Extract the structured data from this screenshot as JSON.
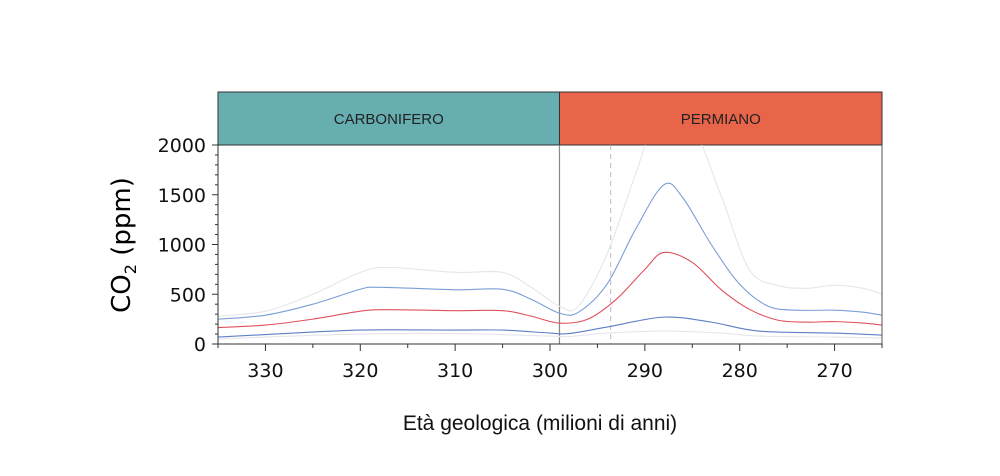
{
  "chart_data": {
    "type": "line",
    "xlabel": "Età geologica (milioni di anni)",
    "ylabel_main": "CO",
    "ylabel_sub": "2",
    "ylabel_unit": " (ppm)",
    "xlim": [
      335,
      265
    ],
    "ylim": [
      0,
      2000
    ],
    "xticks": [
      330,
      320,
      310,
      300,
      290,
      280,
      270
    ],
    "yticks": [
      0,
      500,
      1000,
      1500,
      2000
    ],
    "periods": [
      {
        "label": "CARBONIFERO",
        "from": 335,
        "to": 299,
        "color": "#66aeb0"
      },
      {
        "label": "PERMIANO",
        "from": 299,
        "to": 265,
        "color": "#e8654a"
      }
    ],
    "boundary_line": 299,
    "dashed_line": 293.6,
    "series": [
      {
        "name": "upper-outer",
        "color": "#e4e6ec",
        "points": [
          [
            335,
            280
          ],
          [
            330,
            330
          ],
          [
            325,
            500
          ],
          [
            320,
            720
          ],
          [
            317,
            770
          ],
          [
            310,
            720
          ],
          [
            305,
            720
          ],
          [
            302,
            570
          ],
          [
            299,
            380
          ],
          [
            297,
            380
          ],
          [
            294,
            900
          ],
          [
            291,
            1700
          ],
          [
            289,
            2150
          ],
          [
            285,
            2150
          ],
          [
            282,
            1500
          ],
          [
            279,
            750
          ],
          [
            276,
            590
          ],
          [
            273,
            560
          ],
          [
            270,
            590
          ],
          [
            267,
            560
          ],
          [
            265,
            500
          ]
        ]
      },
      {
        "name": "upper",
        "color": "#7a9fd6",
        "points": [
          [
            335,
            250
          ],
          [
            330,
            290
          ],
          [
            325,
            400
          ],
          [
            320,
            550
          ],
          [
            318,
            570
          ],
          [
            310,
            545
          ],
          [
            305,
            550
          ],
          [
            302,
            450
          ],
          [
            299,
            310
          ],
          [
            297,
            320
          ],
          [
            294,
            600
          ],
          [
            291,
            1150
          ],
          [
            288,
            1600
          ],
          [
            286,
            1470
          ],
          [
            283,
            1000
          ],
          [
            280,
            600
          ],
          [
            277,
            380
          ],
          [
            274,
            340
          ],
          [
            270,
            340
          ],
          [
            267,
            320
          ],
          [
            265,
            290
          ]
        ]
      },
      {
        "name": "median",
        "color": "#e0505e",
        "points": [
          [
            335,
            165
          ],
          [
            330,
            190
          ],
          [
            325,
            250
          ],
          [
            320,
            330
          ],
          [
            317,
            345
          ],
          [
            310,
            335
          ],
          [
            305,
            335
          ],
          [
            302,
            280
          ],
          [
            299,
            210
          ],
          [
            296,
            250
          ],
          [
            293,
            450
          ],
          [
            290,
            750
          ],
          [
            288,
            920
          ],
          [
            285,
            820
          ],
          [
            282,
            550
          ],
          [
            279,
            350
          ],
          [
            276,
            240
          ],
          [
            273,
            220
          ],
          [
            270,
            225
          ],
          [
            267,
            210
          ],
          [
            265,
            190
          ]
        ]
      },
      {
        "name": "lower",
        "color": "#5d7fc4",
        "points": [
          [
            335,
            70
          ],
          [
            330,
            95
          ],
          [
            320,
            140
          ],
          [
            310,
            140
          ],
          [
            305,
            140
          ],
          [
            300,
            110
          ],
          [
            298,
            105
          ],
          [
            294,
            170
          ],
          [
            288,
            270
          ],
          [
            283,
            220
          ],
          [
            278,
            130
          ],
          [
            270,
            110
          ],
          [
            265,
            90
          ]
        ]
      },
      {
        "name": "lower-outer",
        "color": "#e4e6ec",
        "points": [
          [
            335,
            50
          ],
          [
            330,
            70
          ],
          [
            320,
            100
          ],
          [
            310,
            105
          ],
          [
            300,
            80
          ],
          [
            298,
            75
          ],
          [
            294,
            110
          ],
          [
            288,
            130
          ],
          [
            282,
            110
          ],
          [
            278,
            80
          ],
          [
            270,
            70
          ],
          [
            265,
            60
          ]
        ]
      }
    ]
  }
}
